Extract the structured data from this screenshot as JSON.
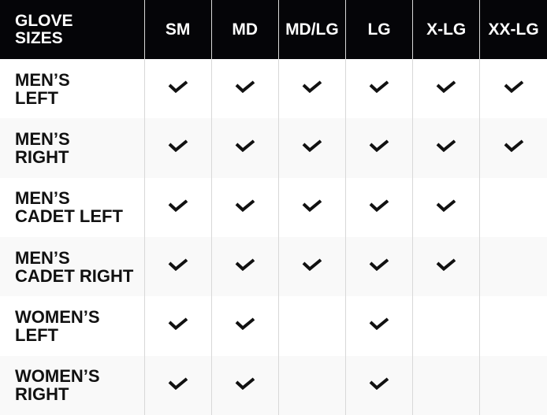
{
  "header": {
    "title_line1": "GLOVE",
    "title_line2": "SIZES",
    "sizes": [
      "SM",
      "MD",
      "MD/LG",
      "LG",
      "X-LG",
      "XX-LG"
    ]
  },
  "rows": [
    {
      "line1": "MEN’S",
      "line2": "LEFT",
      "available": [
        true,
        true,
        true,
        true,
        true,
        true
      ]
    },
    {
      "line1": "MEN’S",
      "line2": "RIGHT",
      "available": [
        true,
        true,
        true,
        true,
        true,
        true
      ]
    },
    {
      "line1": "MEN’S",
      "line2": "CADET LEFT",
      "available": [
        true,
        true,
        true,
        true,
        true,
        false
      ]
    },
    {
      "line1": "MEN’S",
      "line2": "CADET RIGHT",
      "available": [
        true,
        true,
        true,
        true,
        true,
        false
      ]
    },
    {
      "line1": "WOMEN’S",
      "line2": "LEFT",
      "available": [
        true,
        true,
        false,
        true,
        false,
        false
      ]
    },
    {
      "line1": "WOMEN’S",
      "line2": "RIGHT",
      "available": [
        true,
        true,
        false,
        true,
        false,
        false
      ]
    }
  ],
  "icons": {
    "available": "checkmark-icon"
  },
  "colors": {
    "header_bg": "#050508",
    "header_text": "#ffffff",
    "row_alt": "#f9f9f9",
    "check": "#111111"
  }
}
